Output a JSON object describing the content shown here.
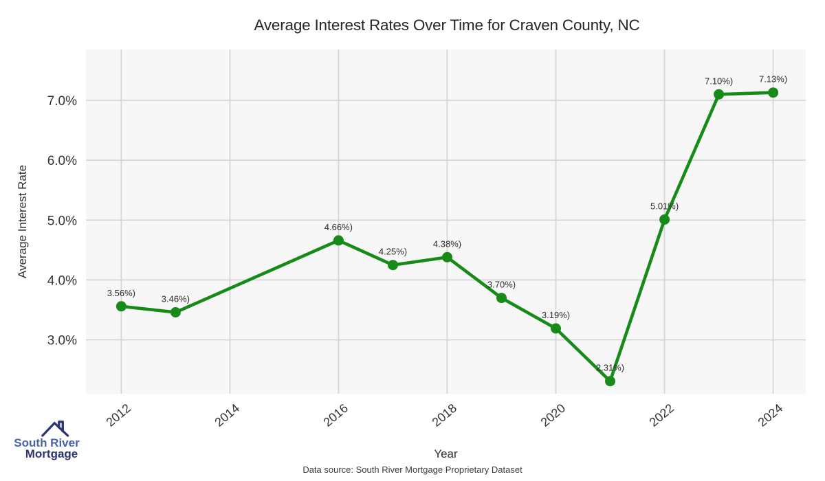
{
  "page": {
    "source_note": "Data source: South River Mortgage Proprietary Dataset"
  },
  "logo": {
    "line1": "South River",
    "line2": "Mortgage",
    "icon": "house-roof-icon",
    "color_primary": "#4663ab",
    "color_secondary": "#2c3377"
  },
  "chart_data": {
    "type": "line",
    "title": "Average Interest Rates Over Time for Craven County, NC",
    "xlabel": "Year",
    "ylabel": "Average Interest Rate",
    "x": [
      2012,
      2013,
      2016,
      2017,
      2018,
      2019,
      2020,
      2021,
      2022,
      2023,
      2024
    ],
    "values": [
      3.56,
      3.46,
      4.66,
      4.25,
      4.38,
      3.7,
      3.19,
      2.31,
      5.01,
      7.1,
      7.13
    ],
    "point_labels": [
      "3.56%)",
      "3.46%)",
      "4.66%)",
      "4.25%)",
      "4.38%)",
      "3.70%)",
      "3.19%)",
      "2.31%)",
      "5.01%)",
      "7.10%)",
      "7.13%)"
    ],
    "x_tick_values": [
      2012,
      2014,
      2016,
      2018,
      2020,
      2022,
      2024
    ],
    "x_tick_labels": [
      "2012",
      "2014",
      "2016",
      "2018",
      "2020",
      "2022",
      "2024"
    ],
    "y_tick_values": [
      3,
      4,
      5,
      6,
      7
    ],
    "y_tick_labels": [
      "3.0%",
      "4.0%",
      "5.0%",
      "6.0%",
      "7.0%"
    ],
    "xlim": [
      2011.35,
      2024.6
    ],
    "ylim": [
      2.1,
      7.85
    ],
    "grid": true,
    "legend": "none",
    "marker": "circle",
    "line_color": "#178b17",
    "plot_bg": "#f7f7f7",
    "grid_color": "#d4d4d4"
  }
}
